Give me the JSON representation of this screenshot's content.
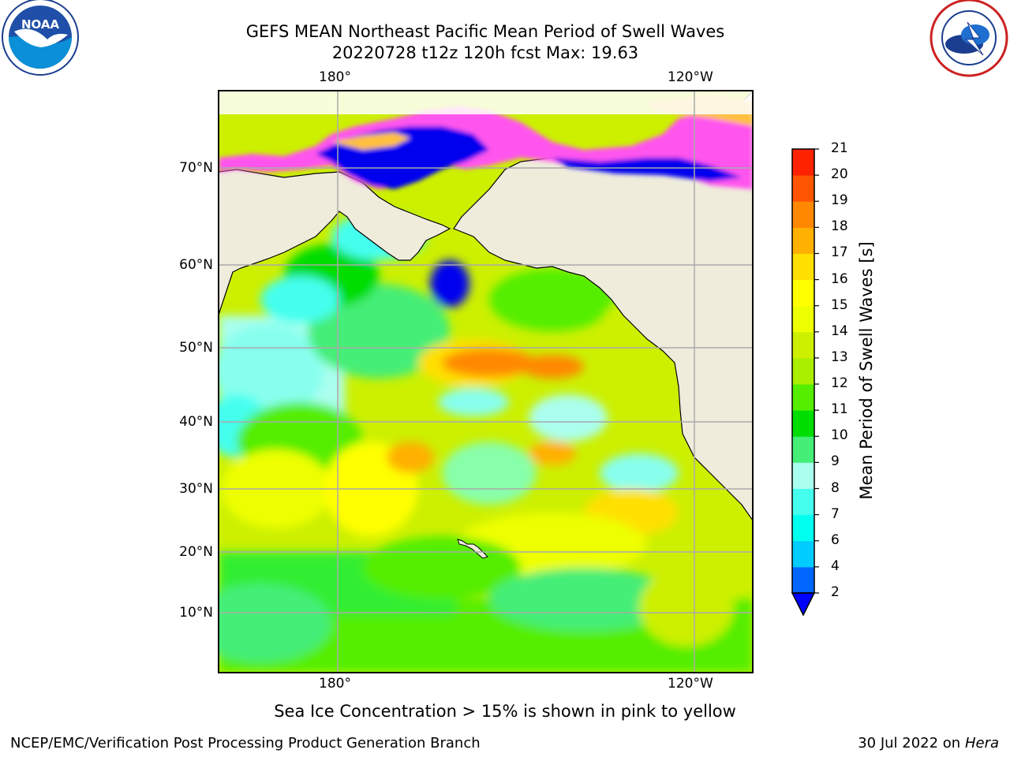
{
  "title": {
    "line1": "GEFS MEAN Northeast Pacific Mean Period of Swell Waves",
    "line2": "20220728 t12z 120h fcst   Max: 19.63"
  },
  "logos": {
    "left": {
      "icon": "noaa-logo-icon",
      "text": "NOAA"
    },
    "right": {
      "icon": "nws-logo-icon",
      "text": "NATIONAL WEATHER SERVICE"
    }
  },
  "map": {
    "lon_labels_top": [
      "180°",
      "120°W"
    ],
    "lon_labels_bottom": [
      "180°",
      "120°W"
    ],
    "lat_labels": [
      "70°N",
      "60°N",
      "50°N",
      "40°N",
      "30°N",
      "20°N",
      "10°N"
    ],
    "land_color": "#efecdc",
    "ocean_dominant_color": "#c8f000",
    "ice_colors": [
      "#ff55ee",
      "#ffc040",
      "#0000ee"
    ]
  },
  "colorbar": {
    "label": "Mean Period of Swell Waves [s]",
    "ticks": [
      "2",
      "4",
      "6",
      "7",
      "8",
      "9",
      "10",
      "11",
      "12",
      "13",
      "14",
      "15",
      "16",
      "17",
      "18",
      "19",
      "20",
      "21"
    ],
    "colors": [
      "#0066ff",
      "#00ccff",
      "#00ffee",
      "#44ffee",
      "#aaffee",
      "#44ee77",
      "#00dd00",
      "#55ee00",
      "#aaee00",
      "#ccf000",
      "#eeff00",
      "#ffff00",
      "#ffe000",
      "#ffb000",
      "#ff8800",
      "#ff5500",
      "#ff2200",
      "#ff0000"
    ],
    "extend_color": "#0000ff"
  },
  "note": "Sea Ice Concentration > 15% is shown in pink to yellow",
  "footer": {
    "left": "NCEP/EMC/Verification Post Processing Product Generation Branch",
    "right_date": "30 Jul 2022 on",
    "right_machine": "Hera"
  }
}
